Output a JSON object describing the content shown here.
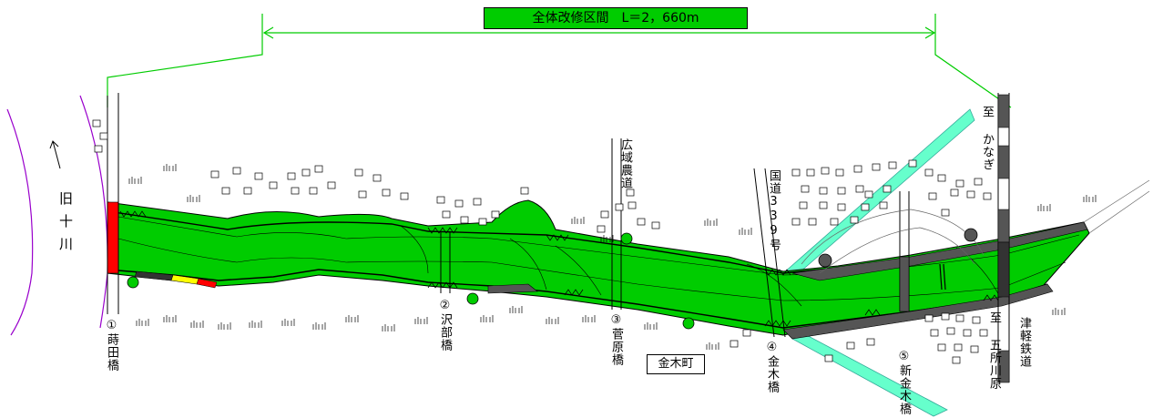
{
  "title": "全体改修区間　L＝2，660m",
  "old_river": "旧十川",
  "town": "金木町",
  "bridges": [
    {
      "num": "①",
      "name": "蒔田橋"
    },
    {
      "num": "②",
      "name": "沢部橋"
    },
    {
      "num": "③",
      "name": "菅原橋"
    },
    {
      "num": "④",
      "name": "金木橋"
    },
    {
      "num": "⑤",
      "name": "新金木橋"
    }
  ],
  "roads": {
    "farm_road": "広域農道",
    "national_road": "国道339号",
    "to_kanagi": "至 かなぎ",
    "to_goshogawara": "至 五所川原",
    "railway": "津軽鉄道"
  },
  "colors": {
    "river": "#00cc00",
    "title_bg": "#00cc00",
    "red_section": "#ff0000",
    "yellow_section": "#ffff00",
    "stream": "#66ffcc",
    "old_river_line": "#9900cc",
    "extent_line": "#00cc00",
    "gray_section": "#555555"
  }
}
